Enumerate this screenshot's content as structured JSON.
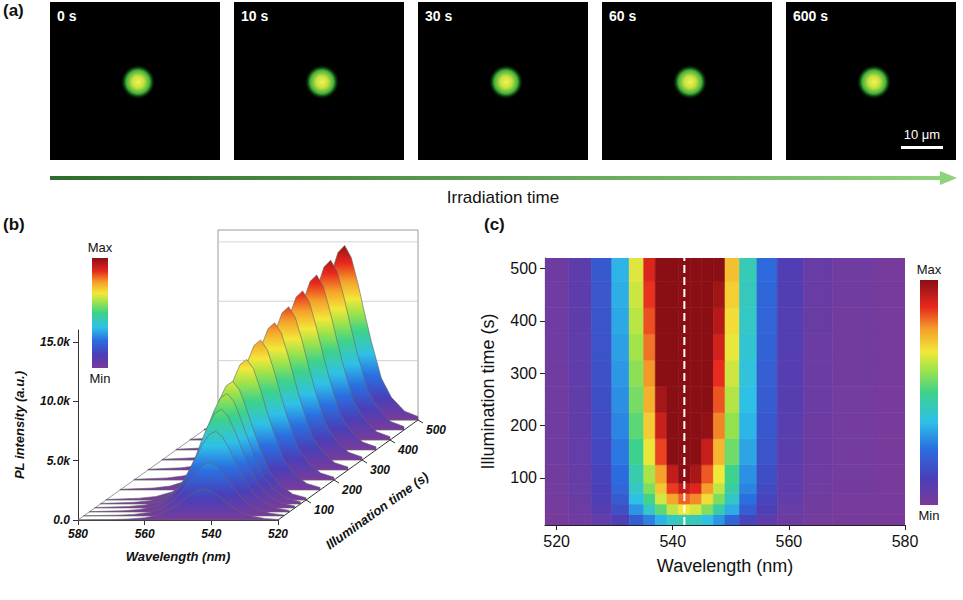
{
  "panel_a": {
    "panel": "(a)",
    "frames": [
      "0 s",
      "10 s",
      "30 s",
      "60 s",
      "600 s"
    ],
    "scale_bar": "10 μm",
    "arrow_label": "Irradiation time"
  },
  "chart_data": [
    {
      "panel": "(b)",
      "type": "surface",
      "xlabel": "Wavelength (nm)",
      "ylabel": "Illumination time (s)",
      "zlabel": "PL intensity (a.u.)",
      "x": [
        520,
        524,
        528,
        531,
        534,
        536,
        538,
        540,
        542,
        544,
        546,
        548,
        550,
        553,
        556,
        560,
        565,
        570,
        580
      ],
      "y": [
        0,
        20,
        40,
        60,
        80,
        100,
        150,
        200,
        250,
        300,
        350,
        400,
        450,
        500
      ],
      "values": [
        [
          52,
          130,
          338,
          624,
          1170,
          1586,
          2028,
          2418,
          2600,
          2496,
          2184,
          1768,
          1300,
          780,
          416,
          182,
          78,
          39,
          13
        ],
        [
          90,
          225,
          585,
          1080,
          2025,
          2745,
          3510,
          4185,
          4500,
          4320,
          3780,
          3060,
          2250,
          1350,
          720,
          315,
          135,
          68,
          23
        ],
        [
          136,
          340,
          884,
          1632,
          3060,
          4148,
          5304,
          6324,
          6800,
          6528,
          5712,
          4624,
          3400,
          2040,
          1088,
          476,
          204,
          102,
          34
        ],
        [
          166,
          415,
          1079,
          1992,
          3735,
          5063,
          6474,
          7719,
          8300,
          7968,
          6972,
          5644,
          4150,
          2490,
          1328,
          581,
          249,
          125,
          42
        ],
        [
          186,
          465,
          1209,
          2232,
          4185,
          5673,
          7254,
          8649,
          9300,
          8928,
          7812,
          6324,
          4650,
          2790,
          1488,
          651,
          279,
          140,
          47
        ],
        [
          200,
          500,
          1300,
          2400,
          4500,
          6100,
          7800,
          9300,
          10000,
          9600,
          8400,
          6800,
          5000,
          3000,
          1600,
          700,
          300,
          150,
          50
        ],
        [
          220,
          550,
          1430,
          2640,
          4950,
          6710,
          8580,
          10230,
          11000,
          10560,
          9240,
          7480,
          5500,
          3300,
          1760,
          770,
          330,
          165,
          55
        ],
        [
          236,
          590,
          1534,
          2832,
          5310,
          7198,
          9204,
          10974,
          11800,
          11328,
          9912,
          8024,
          5900,
          3540,
          1888,
          826,
          354,
          177,
          59
        ],
        [
          248,
          620,
          1612,
          2976,
          5580,
          7564,
          9672,
          11532,
          12400,
          11904,
          10416,
          8432,
          6200,
          3720,
          1984,
          868,
          372,
          186,
          62
        ],
        [
          258,
          645,
          1677,
          3096,
          5805,
          7869,
          10062,
          11997,
          12900,
          12384,
          10836,
          8772,
          6450,
          3870,
          2064,
          903,
          387,
          194,
          65
        ],
        [
          268,
          670,
          1742,
          3216,
          6030,
          8174,
          10452,
          12462,
          13400,
          12864,
          11256,
          9112,
          6700,
          4020,
          2144,
          938,
          402,
          201,
          67
        ],
        [
          278,
          695,
          1807,
          3336,
          6255,
          8479,
          10842,
          12927,
          13900,
          13344,
          11676,
          9452,
          6950,
          4170,
          2224,
          973,
          417,
          209,
          70
        ],
        [
          286,
          715,
          1859,
          3432,
          6435,
          8723,
          11154,
          13299,
          14300,
          13728,
          12012,
          9724,
          7150,
          4290,
          2288,
          1001,
          429,
          215,
          72
        ],
        [
          294,
          735,
          1911,
          3528,
          6615,
          8967,
          11466,
          13671,
          14700,
          14112,
          12348,
          9996,
          7350,
          4410,
          2352,
          1029,
          441,
          221,
          74
        ]
      ],
      "xlim": [
        520,
        580
      ],
      "xticks": [
        520,
        540,
        560,
        580
      ],
      "ylim": [
        0,
        500
      ],
      "yticks": [
        100,
        200,
        300,
        400,
        500
      ],
      "zlim": [
        0,
        16000
      ],
      "zticks": [
        {
          "value": 0,
          "label": "0.0"
        },
        {
          "value": 5000,
          "label": "5.0k"
        },
        {
          "value": 10000,
          "label": "10.0k"
        },
        {
          "value": 15000,
          "label": "15.0k"
        }
      ],
      "colorbar": {
        "range": [
          0,
          15000
        ],
        "ticks": [
          {
            "value": 0,
            "label": "Min"
          },
          {
            "value": 15000,
            "label": "Max"
          }
        ]
      },
      "grid": true
    },
    {
      "panel": "(c)",
      "type": "heatmap",
      "xlabel": "Wavelength (nm)",
      "ylabel": "Illumination time (s)",
      "x": [
        520,
        524,
        528,
        531,
        534,
        536,
        538,
        540,
        542,
        544,
        546,
        548,
        550,
        553,
        556,
        560,
        565,
        570,
        580
      ],
      "y": [
        0,
        20,
        40,
        60,
        80,
        100,
        150,
        200,
        250,
        300,
        350,
        400,
        450,
        500
      ],
      "values": [
        [
          52,
          130,
          338,
          624,
          1170,
          1586,
          2028,
          2418,
          2600,
          2496,
          2184,
          1768,
          1300,
          780,
          416,
          182,
          78,
          39,
          13
        ],
        [
          90,
          225,
          585,
          1080,
          2025,
          2745,
          3510,
          4185,
          4500,
          4320,
          3780,
          3060,
          2250,
          1350,
          720,
          315,
          135,
          68,
          23
        ],
        [
          136,
          340,
          884,
          1632,
          3060,
          4148,
          5304,
          6324,
          6800,
          6528,
          5712,
          4624,
          3400,
          2040,
          1088,
          476,
          204,
          102,
          34
        ],
        [
          166,
          415,
          1079,
          1992,
          3735,
          5063,
          6474,
          7719,
          8300,
          7968,
          6972,
          5644,
          4150,
          2490,
          1328,
          581,
          249,
          125,
          42
        ],
        [
          186,
          465,
          1209,
          2232,
          4185,
          5673,
          7254,
          8649,
          9300,
          8928,
          7812,
          6324,
          4650,
          2790,
          1488,
          651,
          279,
          140,
          47
        ],
        [
          200,
          500,
          1300,
          2400,
          4500,
          6100,
          7800,
          9300,
          10000,
          9600,
          8400,
          6800,
          5000,
          3000,
          1600,
          700,
          300,
          150,
          50
        ],
        [
          220,
          550,
          1430,
          2640,
          4950,
          6710,
          8580,
          10230,
          11000,
          10560,
          9240,
          7480,
          5500,
          3300,
          1760,
          770,
          330,
          165,
          55
        ],
        [
          236,
          590,
          1534,
          2832,
          5310,
          7198,
          9204,
          10974,
          11800,
          11328,
          9912,
          8024,
          5900,
          3540,
          1888,
          826,
          354,
          177,
          59
        ],
        [
          248,
          620,
          1612,
          2976,
          5580,
          7564,
          9672,
          11532,
          12400,
          11904,
          10416,
          8432,
          6200,
          3720,
          1984,
          868,
          372,
          186,
          62
        ],
        [
          258,
          645,
          1677,
          3096,
          5805,
          7869,
          10062,
          11997,
          12900,
          12384,
          10836,
          8772,
          6450,
          3870,
          2064,
          903,
          387,
          194,
          65
        ],
        [
          268,
          670,
          1742,
          3216,
          6030,
          8174,
          10452,
          12462,
          13400,
          12864,
          11256,
          9112,
          6700,
          4020,
          2144,
          938,
          402,
          201,
          67
        ],
        [
          278,
          695,
          1807,
          3336,
          6255,
          8479,
          10842,
          12927,
          13900,
          13344,
          11676,
          9452,
          6950,
          4170,
          2224,
          973,
          417,
          209,
          70
        ],
        [
          286,
          715,
          1859,
          3432,
          6435,
          8723,
          11154,
          13299,
          14300,
          13728,
          12012,
          9724,
          7150,
          4290,
          2288,
          1001,
          429,
          215,
          72
        ],
        [
          294,
          735,
          1911,
          3528,
          6615,
          8967,
          11466,
          13671,
          14700,
          14112,
          12348,
          9996,
          7350,
          4410,
          2352,
          1029,
          441,
          221,
          74
        ]
      ],
      "xlim": [
        518,
        580
      ],
      "xticks": [
        520,
        540,
        560,
        580
      ],
      "ylim": [
        10,
        520
      ],
      "yticks": [
        100,
        200,
        300,
        400,
        500
      ],
      "colorbar": {
        "range": [
          0,
          10000
        ],
        "ticks": [
          {
            "value": 0,
            "label": "Min"
          },
          {
            "value": 10000,
            "label": "Max"
          }
        ]
      },
      "vline": {
        "x": 542,
        "color": "#ffffff",
        "line_style": "dashed"
      }
    }
  ]
}
